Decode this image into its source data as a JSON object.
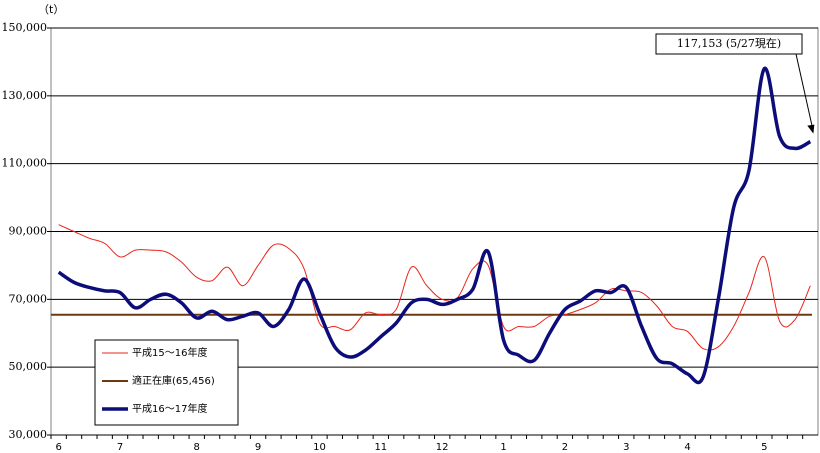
{
  "chart_data": {
    "type": "line",
    "y_unit": "（t）",
    "categories": [
      "6",
      null,
      null,
      null,
      "7",
      null,
      null,
      null,
      null,
      "8",
      null,
      null,
      null,
      "9",
      null,
      null,
      null,
      "10",
      null,
      null,
      null,
      "11",
      null,
      null,
      null,
      "12",
      null,
      null,
      null,
      "1",
      null,
      null,
      null,
      "2",
      null,
      null,
      null,
      "3",
      null,
      null,
      null,
      "4",
      null,
      null,
      null,
      null,
      "5",
      null,
      null,
      null
    ],
    "series": [
      {
        "name": "平成15～16年度",
        "color": "#e8261c",
        "width": 1,
        "values": [
          92000,
          90000,
          88000,
          86500,
          82500,
          84500,
          84500,
          84000,
          81000,
          76500,
          75500,
          79500,
          74000,
          80000,
          86000,
          85000,
          79000,
          63000,
          62000,
          61000,
          66000,
          65500,
          67000,
          79500,
          74000,
          70000,
          70500,
          79000,
          80000,
          62000,
          62000,
          62000,
          65000,
          65500,
          67000,
          69000,
          73000,
          72500,
          72000,
          68000,
          62000,
          60500,
          55500,
          56000,
          62000,
          72000,
          82500,
          63500,
          64000,
          74000
        ]
      },
      {
        "name": "平成16～17年度",
        "color": "#0d0d7a",
        "width": 3.5,
        "values": [
          78000,
          75000,
          73500,
          72500,
          72000,
          67500,
          70000,
          71500,
          69000,
          64500,
          66500,
          64000,
          65000,
          66000,
          62000,
          67000,
          76000,
          66000,
          56000,
          53000,
          55000,
          59000,
          63000,
          69000,
          70000,
          68500,
          70000,
          73000,
          84000,
          58000,
          53500,
          52000,
          60000,
          67000,
          69500,
          72500,
          72000,
          73500,
          62000,
          52500,
          51000,
          48000,
          47000,
          70000,
          97000,
          108000,
          138000,
          118000,
          114500,
          116500
        ]
      }
    ],
    "reference": {
      "name": "適正在庫(65,456)",
      "value": 65456,
      "color": "#6b3a10"
    },
    "annotation": "117,153 (5/27現在)",
    "ylim": [
      30000,
      150000
    ],
    "yticks": [
      {
        "value": 30000,
        "label": "30,000"
      },
      {
        "value": 50000,
        "label": "50,000"
      },
      {
        "value": 70000,
        "label": "70,000"
      },
      {
        "value": 90000,
        "label": "90,000"
      },
      {
        "value": 110000,
        "label": "110,000"
      },
      {
        "value": 130000,
        "label": "130,000"
      },
      {
        "value": 150000,
        "label": "150,000"
      }
    ],
    "grid": true
  }
}
